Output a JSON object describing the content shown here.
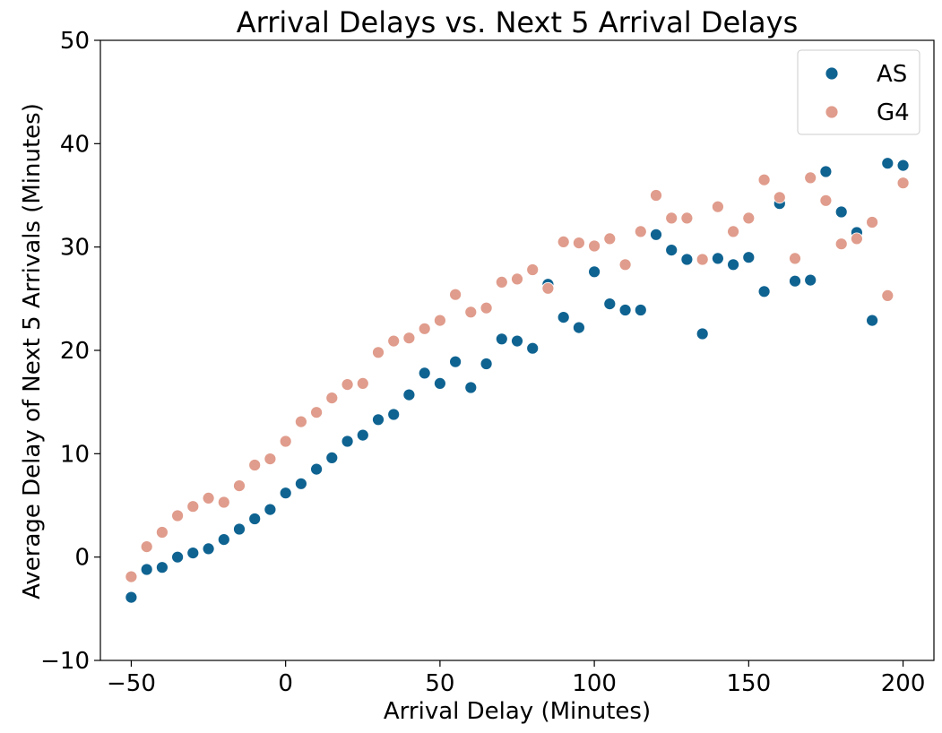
{
  "chart_data": {
    "type": "scatter",
    "title": "Arrival Delays vs. Next 5 Arrival Delays",
    "xlabel": "Arrival Delay (Minutes)",
    "ylabel": "Average Delay of Next 5 Arrivals (Minutes)",
    "xlim": [
      -60,
      210
    ],
    "ylim": [
      -10,
      50
    ],
    "xticks": [
      -50,
      0,
      50,
      100,
      150,
      200
    ],
    "yticks": [
      -10,
      0,
      10,
      20,
      30,
      40,
      50
    ],
    "xtick_labels": [
      "−50",
      "0",
      "50",
      "100",
      "150",
      "200"
    ],
    "ytick_labels": [
      "−10",
      "0",
      "10",
      "20",
      "30",
      "40",
      "50"
    ],
    "grid": false,
    "legend_position": "top-right",
    "series": [
      {
        "name": "AS",
        "color": "#0f6391",
        "x": [
          -50,
          -45,
          -40,
          -35,
          -30,
          -25,
          -20,
          -15,
          -10,
          -5,
          0,
          5,
          10,
          15,
          20,
          25,
          30,
          35,
          40,
          45,
          50,
          55,
          60,
          65,
          70,
          75,
          80,
          85,
          90,
          95,
          100,
          105,
          110,
          115,
          120,
          125,
          130,
          135,
          140,
          145,
          150,
          155,
          160,
          165,
          170,
          175,
          180,
          185,
          190,
          195,
          200
        ],
        "y": [
          -3.9,
          -1.2,
          -1.0,
          0.0,
          0.4,
          0.8,
          1.7,
          2.7,
          3.7,
          4.6,
          6.2,
          7.1,
          8.5,
          9.6,
          11.2,
          11.8,
          13.3,
          13.8,
          15.7,
          17.8,
          16.8,
          18.9,
          16.4,
          18.7,
          21.1,
          20.9,
          20.2,
          26.4,
          23.2,
          22.2,
          27.6,
          24.5,
          23.9,
          23.9,
          31.2,
          29.7,
          28.8,
          21.6,
          28.9,
          28.3,
          29.0,
          25.7,
          34.2,
          26.7,
          26.8,
          37.3,
          33.4,
          31.4,
          22.9,
          38.1,
          37.9
        ]
      },
      {
        "name": "G4",
        "color": "#e09c8c",
        "x": [
          -50,
          -45,
          -40,
          -35,
          -30,
          -25,
          -20,
          -15,
          -10,
          -5,
          0,
          5,
          10,
          15,
          20,
          25,
          30,
          35,
          40,
          45,
          50,
          55,
          60,
          65,
          70,
          75,
          80,
          85,
          90,
          95,
          100,
          105,
          110,
          115,
          120,
          125,
          130,
          135,
          140,
          145,
          150,
          155,
          160,
          165,
          170,
          175,
          180,
          185,
          190,
          195,
          200
        ],
        "y": [
          -1.9,
          1.0,
          2.4,
          4.0,
          4.9,
          5.7,
          5.3,
          6.9,
          8.9,
          9.5,
          11.2,
          13.1,
          14.0,
          15.4,
          16.7,
          16.8,
          19.8,
          20.9,
          21.2,
          22.1,
          22.9,
          25.4,
          23.7,
          24.1,
          26.6,
          26.9,
          27.8,
          26.0,
          30.5,
          30.4,
          30.1,
          30.8,
          28.3,
          31.5,
          35.0,
          32.8,
          32.8,
          28.8,
          33.9,
          31.5,
          32.8,
          36.5,
          34.8,
          28.9,
          36.7,
          34.5,
          30.3,
          30.8,
          32.4,
          25.3,
          36.2
        ]
      }
    ]
  }
}
